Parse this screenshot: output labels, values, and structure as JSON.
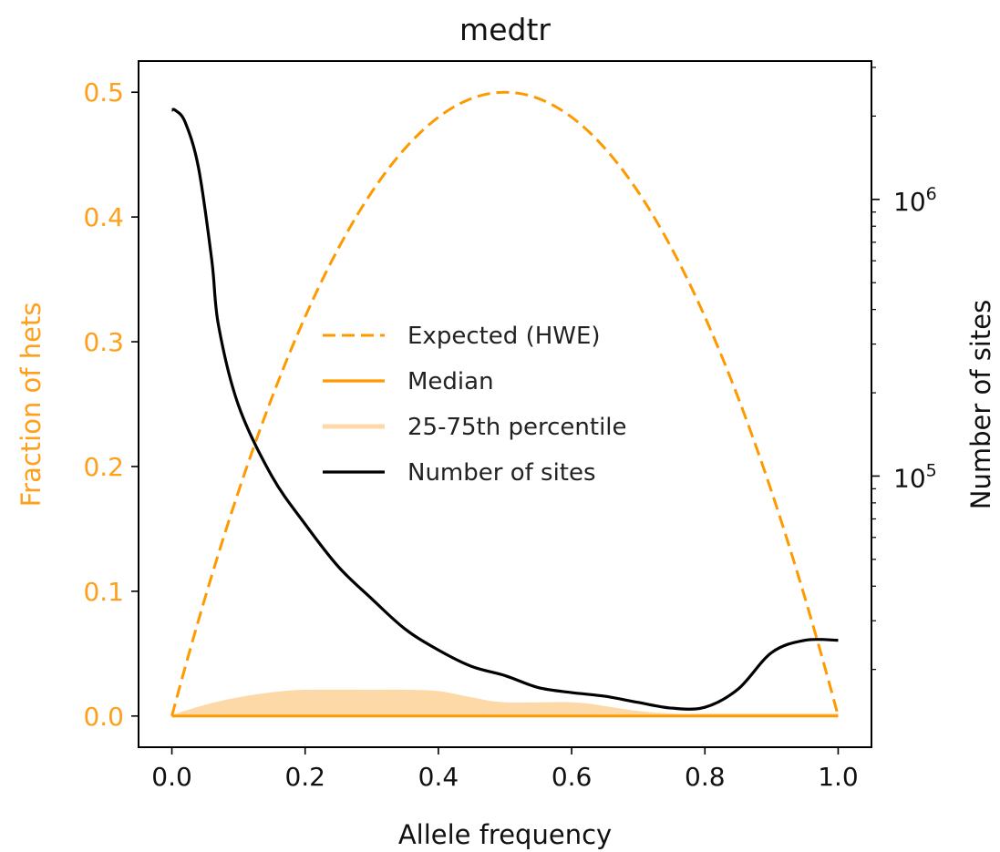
{
  "chart_data": {
    "type": "line",
    "title": "medtr",
    "xlabel": "Allele frequency",
    "ylabel_left": "Fraction of hets",
    "ylabel_right": "Number of sites",
    "xlim": [
      -0.05,
      1.05
    ],
    "ylim_left": [
      -0.025,
      0.525
    ],
    "ylim_right_log10": [
      4.02,
      6.5
    ],
    "right_axis_scale": "log",
    "x_ticks": [
      "0.0",
      "0.2",
      "0.4",
      "0.6",
      "0.8",
      "1.0"
    ],
    "x_tick_values": [
      0.0,
      0.2,
      0.4,
      0.6,
      0.8,
      1.0
    ],
    "y_left_ticks": [
      "0.0",
      "0.1",
      "0.2",
      "0.3",
      "0.4",
      "0.5"
    ],
    "y_left_tick_values": [
      0.0,
      0.1,
      0.2,
      0.3,
      0.4,
      0.5
    ],
    "y_right_major_ticks": [
      {
        "base": "10",
        "exp": "5",
        "value": 100000
      },
      {
        "base": "10",
        "exp": "6",
        "value": 1000000
      }
    ],
    "colors": {
      "expected": "#ff9900",
      "median": "#ff9900",
      "percentile_band": "#fdd9a8",
      "sites": "#000000",
      "left_axis": "#ff9f1c"
    },
    "legend": {
      "placement": "center",
      "entries": [
        {
          "label": "Expected (HWE)",
          "style": "dashed",
          "color": "#ff9900"
        },
        {
          "label": "Median",
          "style": "solid",
          "color": "#ff9900"
        },
        {
          "label": "25-75th percentile",
          "style": "solid-light",
          "color": "#fdd9a8"
        },
        {
          "label": "Number of sites",
          "style": "solid",
          "color": "#000000"
        }
      ]
    },
    "series": [
      {
        "name": "Expected (HWE)",
        "axis": "left",
        "formula": "2p(1-p)",
        "x": [
          0,
          0.05,
          0.1,
          0.15,
          0.2,
          0.25,
          0.3,
          0.35,
          0.4,
          0.45,
          0.5,
          0.55,
          0.6,
          0.65,
          0.7,
          0.75,
          0.8,
          0.85,
          0.9,
          0.95,
          1.0
        ],
        "y": [
          0,
          0.095,
          0.18,
          0.255,
          0.32,
          0.375,
          0.42,
          0.455,
          0.48,
          0.495,
          0.5,
          0.495,
          0.48,
          0.455,
          0.42,
          0.375,
          0.32,
          0.255,
          0.18,
          0.095,
          0
        ]
      },
      {
        "name": "Median",
        "axis": "left",
        "x": [
          0,
          1.0
        ],
        "y": [
          0,
          0
        ]
      },
      {
        "name": "25-75th percentile",
        "axis": "left",
        "x": [
          0,
          0.05,
          0.1,
          0.15,
          0.2,
          0.3,
          0.35,
          0.4,
          0.45,
          0.5,
          0.6,
          0.65,
          0.7,
          0.75,
          0.8,
          0.9,
          1.0
        ],
        "low": [
          0,
          0,
          0,
          0,
          0,
          0,
          0,
          0,
          0,
          0,
          0,
          0,
          0,
          0,
          0,
          0,
          0
        ],
        "high": [
          0.001,
          0.009,
          0.015,
          0.019,
          0.021,
          0.021,
          0.021,
          0.02,
          0.015,
          0.011,
          0.011,
          0.008,
          0.004,
          0.002,
          0.002,
          0.002,
          0.002
        ]
      },
      {
        "name": "Number of sites",
        "axis": "right",
        "x": [
          0,
          0.005,
          0.02,
          0.04,
          0.06,
          0.07,
          0.1,
          0.15,
          0.2,
          0.25,
          0.3,
          0.35,
          0.4,
          0.45,
          0.5,
          0.55,
          0.6,
          0.65,
          0.7,
          0.75,
          0.8,
          0.85,
          0.9,
          0.95,
          1.0
        ],
        "y": [
          2100000,
          2100000,
          1900000,
          1300000,
          600000,
          350000,
          180000,
          100000,
          67000,
          47000,
          36000,
          28000,
          23500,
          20500,
          19000,
          17200,
          16500,
          16000,
          15200,
          14500,
          14600,
          17000,
          23000,
          25500,
          25500
        ]
      }
    ]
  }
}
